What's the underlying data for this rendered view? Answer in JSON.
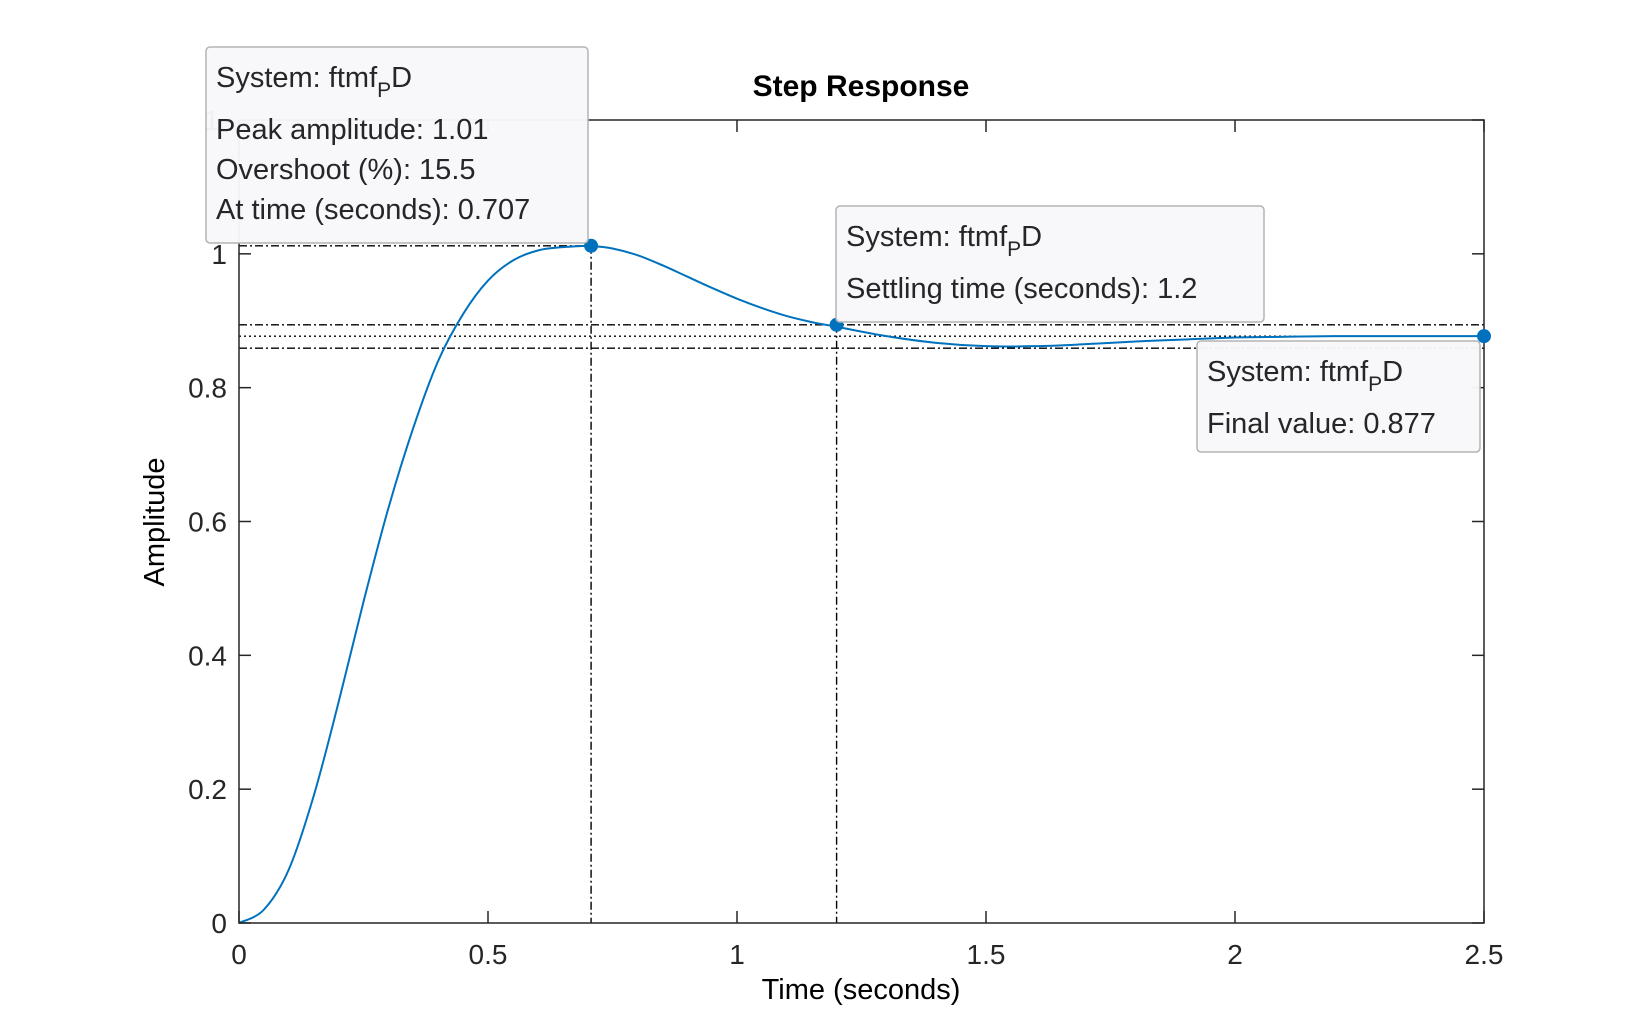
{
  "chart_data": {
    "type": "line",
    "title": "Step Response",
    "xlabel": "Time (seconds)",
    "ylabel": "Amplitude",
    "xlim": [
      0,
      2.5
    ],
    "ylim": [
      0,
      1.2
    ],
    "x_ticks": [
      "0",
      "0.5",
      "1",
      "1.5",
      "2",
      "2.5"
    ],
    "y_ticks": [
      "0",
      "0.2",
      "0.4",
      "0.6",
      "0.8",
      "1"
    ],
    "y_top_tick_partial": "1.",
    "grid": false,
    "legend": "none",
    "series": [
      {
        "color": "#0072BD",
        "x": [
          0,
          0.05,
          0.1,
          0.15,
          0.2,
          0.25,
          0.3,
          0.35,
          0.4,
          0.45,
          0.5,
          0.55,
          0.6,
          0.65,
          0.7,
          0.707,
          0.75,
          0.8,
          0.85,
          0.9,
          0.95,
          1.0,
          1.05,
          1.1,
          1.15,
          1.2,
          1.3,
          1.4,
          1.5,
          1.6,
          1.7,
          1.8,
          1.9,
          2.0,
          2.1,
          2.2,
          2.3,
          2.4,
          2.5
        ],
        "y": [
          0,
          0.02,
          0.08,
          0.19,
          0.33,
          0.48,
          0.62,
          0.74,
          0.84,
          0.91,
          0.96,
          0.99,
          1.005,
          1.01,
          1.012,
          1.012,
          1.008,
          0.998,
          0.983,
          0.966,
          0.949,
          0.933,
          0.919,
          0.907,
          0.898,
          0.891,
          0.877,
          0.867,
          0.862,
          0.862,
          0.865,
          0.869,
          0.872,
          0.875,
          0.876,
          0.877,
          0.877,
          0.877,
          0.877
        ]
      }
    ],
    "settling_band": {
      "upper": 0.894,
      "lower": 0.859,
      "final": 0.877
    },
    "annotations": [
      {
        "marker": "peak",
        "x": 0.707,
        "y": 1.012,
        "system_prefix": "System: ftmf",
        "system_sub": "P",
        "system_suffix": "D",
        "lines": [
          "Peak amplitude: 1.01",
          "Overshoot (%): 15.5",
          "At time (seconds): 0.707"
        ]
      },
      {
        "marker": "settling",
        "x": 1.2,
        "y": 0.894,
        "system_prefix": "System: ftmf",
        "system_sub": "P",
        "system_suffix": "D",
        "lines": [
          "Settling time (seconds): 1.2"
        ]
      },
      {
        "marker": "final",
        "x": 2.5,
        "y": 0.877,
        "system_prefix": "System: ftmf",
        "system_sub": "P",
        "system_suffix": "D",
        "lines": [
          "Final value: 0.877"
        ]
      }
    ]
  }
}
